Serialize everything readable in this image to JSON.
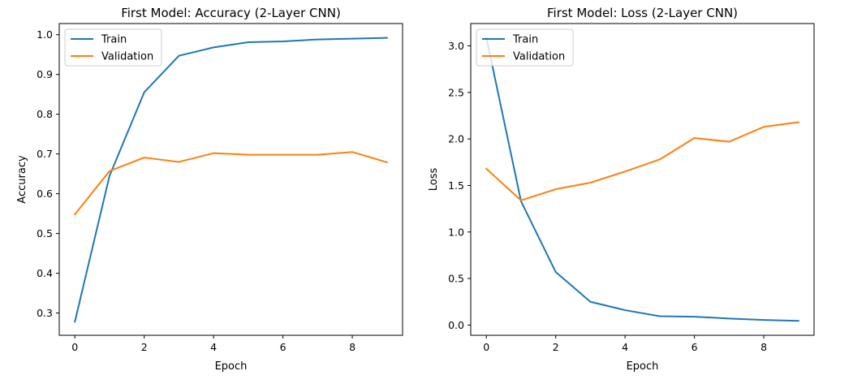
{
  "chart_data": [
    {
      "type": "line",
      "title": "First Model: Accuracy (2-Layer CNN)",
      "xlabel": "Epoch",
      "ylabel": "Accuracy",
      "xlim": [
        -0.45,
        9.45
      ],
      "ylim": [
        0.244,
        1.028
      ],
      "x": [
        0,
        1,
        2,
        3,
        4,
        5,
        6,
        7,
        8,
        9
      ],
      "xticks": [
        0,
        2,
        4,
        6,
        8
      ],
      "yticks": [
        0.3,
        0.4,
        0.5,
        0.6,
        0.7,
        0.8,
        0.9,
        1.0
      ],
      "ytick_labels": [
        "0.3",
        "0.4",
        "0.5",
        "0.6",
        "0.7",
        "0.8",
        "0.9",
        "1.0"
      ],
      "legend_position": "upper-left",
      "series": [
        {
          "name": "Train",
          "color": "#1f77b4",
          "values": [
            0.278,
            0.645,
            0.855,
            0.947,
            0.968,
            0.981,
            0.983,
            0.988,
            0.99,
            0.992
          ]
        },
        {
          "name": "Validation",
          "color": "#ff7f0e",
          "values": [
            0.548,
            0.657,
            0.691,
            0.68,
            0.702,
            0.698,
            0.698,
            0.698,
            0.705,
            0.679
          ]
        }
      ]
    },
    {
      "type": "line",
      "title": "First Model: Loss (2-Layer CNN)",
      "xlabel": "Epoch",
      "ylabel": "Loss",
      "xlim": [
        -0.45,
        9.45
      ],
      "ylim": [
        -0.11,
        3.24
      ],
      "x": [
        0,
        1,
        2,
        3,
        4,
        5,
        6,
        7,
        8,
        9
      ],
      "xticks": [
        0,
        2,
        4,
        6,
        8
      ],
      "yticks": [
        0.0,
        0.5,
        1.0,
        1.5,
        2.0,
        2.5,
        3.0
      ],
      "ytick_labels": [
        "0.0",
        "0.5",
        "1.0",
        "1.5",
        "2.0",
        "2.5",
        "3.0"
      ],
      "legend_position": "upper-left",
      "series": [
        {
          "name": "Train",
          "color": "#1f77b4",
          "values": [
            3.09,
            1.33,
            0.57,
            0.25,
            0.16,
            0.095,
            0.09,
            0.07,
            0.055,
            0.045
          ]
        },
        {
          "name": "Validation",
          "color": "#ff7f0e",
          "values": [
            1.68,
            1.34,
            1.46,
            1.53,
            1.65,
            1.78,
            2.01,
            1.97,
            2.13,
            2.18
          ]
        }
      ]
    }
  ]
}
